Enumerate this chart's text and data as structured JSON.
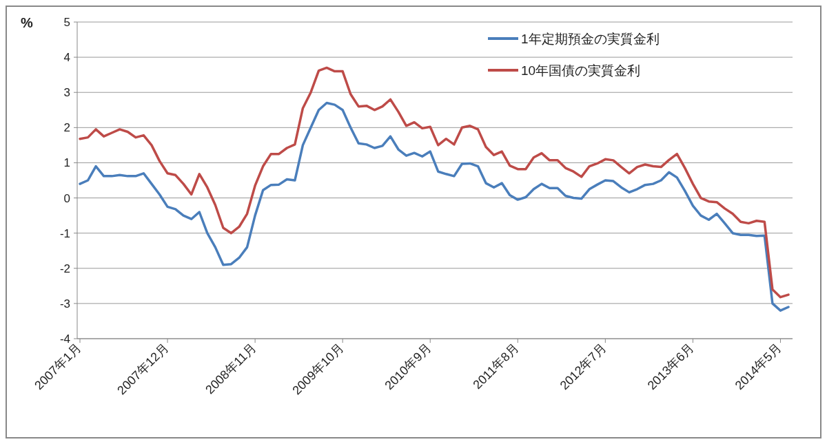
{
  "chart_data": {
    "type": "line",
    "ylabel": "%",
    "categories": [
      "2007年1月",
      null,
      null,
      null,
      null,
      null,
      null,
      null,
      null,
      null,
      null,
      "2007年12月",
      null,
      null,
      null,
      null,
      null,
      null,
      null,
      null,
      null,
      null,
      "2008年11月",
      null,
      null,
      null,
      null,
      null,
      null,
      null,
      null,
      null,
      null,
      "2009年10月",
      null,
      null,
      null,
      null,
      null,
      null,
      null,
      null,
      null,
      null,
      "2010年9月",
      null,
      null,
      null,
      null,
      null,
      null,
      null,
      null,
      null,
      null,
      "2011年8月",
      null,
      null,
      null,
      null,
      null,
      null,
      null,
      null,
      null,
      null,
      "2012年7月",
      null,
      null,
      null,
      null,
      null,
      null,
      null,
      null,
      null,
      null,
      "2013年6月",
      null,
      null,
      null,
      null,
      null,
      null,
      null,
      null,
      null,
      null,
      "2014年5月",
      null
    ],
    "series": [
      {
        "name": "1年定期預金の実質金利",
        "color": "#4a7ebb",
        "values": [
          0.4,
          0.5,
          0.9,
          0.62,
          0.62,
          0.65,
          0.62,
          0.62,
          0.7,
          0.4,
          0.1,
          -0.25,
          -0.32,
          -0.5,
          -0.6,
          -0.4,
          -1.0,
          -1.4,
          -1.9,
          -1.88,
          -1.7,
          -1.4,
          -0.5,
          0.22,
          0.37,
          0.38,
          0.53,
          0.5,
          1.5,
          2.0,
          2.5,
          2.7,
          2.65,
          2.5,
          2.0,
          1.55,
          1.52,
          1.42,
          1.48,
          1.75,
          1.38,
          1.2,
          1.28,
          1.18,
          1.32,
          0.75,
          0.68,
          0.62,
          0.97,
          0.98,
          0.9,
          0.42,
          0.3,
          0.42,
          0.08,
          -0.05,
          0.02,
          0.25,
          0.4,
          0.28,
          0.28,
          0.06,
          0.0,
          -0.02,
          0.25,
          0.38,
          0.5,
          0.48,
          0.3,
          0.16,
          0.25,
          0.37,
          0.4,
          0.5,
          0.73,
          0.58,
          0.2,
          -0.22,
          -0.5,
          -0.62,
          -0.45,
          -0.72,
          -1.0,
          -1.05,
          -1.05,
          -1.08,
          -1.07,
          -3.0,
          -3.2,
          -3.1
        ]
      },
      {
        "name": "10年国債の実質金利",
        "color": "#be4b48",
        "values": [
          1.68,
          1.72,
          1.95,
          1.75,
          1.85,
          1.95,
          1.88,
          1.72,
          1.78,
          1.5,
          1.05,
          0.7,
          0.65,
          0.4,
          0.1,
          0.68,
          0.3,
          -0.2,
          -0.85,
          -1.0,
          -0.82,
          -0.45,
          0.35,
          0.9,
          1.25,
          1.25,
          1.42,
          1.52,
          2.55,
          3.0,
          3.62,
          3.7,
          3.6,
          3.6,
          2.95,
          2.6,
          2.62,
          2.5,
          2.6,
          2.8,
          2.45,
          2.05,
          2.15,
          1.98,
          2.02,
          1.5,
          1.68,
          1.52,
          2.0,
          2.05,
          1.95,
          1.45,
          1.22,
          1.32,
          0.92,
          0.82,
          0.82,
          1.15,
          1.27,
          1.07,
          1.07,
          0.85,
          0.75,
          0.6,
          0.9,
          0.98,
          1.1,
          1.07,
          0.88,
          0.7,
          0.88,
          0.95,
          0.9,
          0.88,
          1.08,
          1.25,
          0.85,
          0.4,
          0.0,
          -0.1,
          -0.12,
          -0.3,
          -0.45,
          -0.68,
          -0.72,
          -0.65,
          -0.68,
          -2.6,
          -2.82,
          -2.75
        ]
      }
    ],
    "ylim": [
      -4,
      5
    ],
    "yticks": [
      -4,
      -3,
      -2,
      -1,
      0,
      1,
      2,
      3,
      4,
      5
    ],
    "grid": "y",
    "legend": "top right",
    "marker": "none",
    "line_style": "solid"
  }
}
